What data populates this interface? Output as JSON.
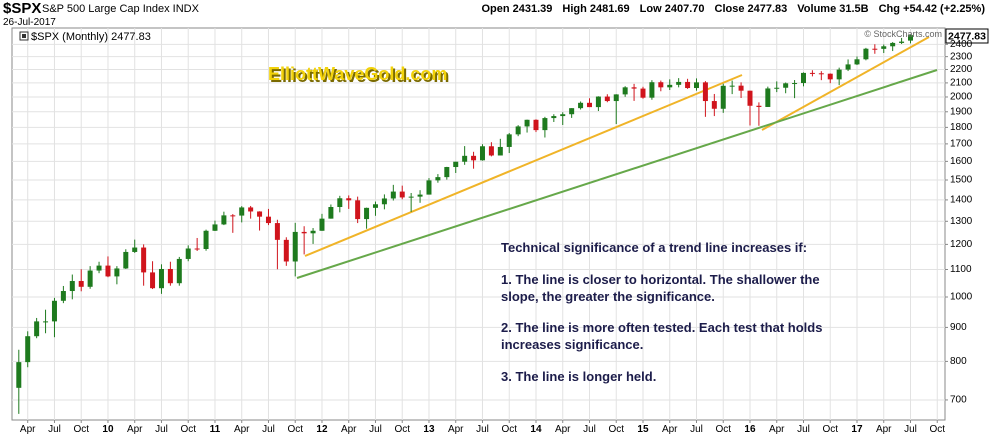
{
  "chart_data": {
    "type": "candlestick",
    "symbol": "$SPX",
    "title": "S&P 500 Large Cap Index INDX",
    "date": "26-Jul-2017",
    "quote": [
      "Open 2431.39",
      "High 2481.69",
      "Low 2407.70",
      "Close 2477.83",
      "Volume 31.5B",
      "Chg +54.42 (+2.25%)"
    ],
    "legend": "$SPX (Monthly) 2477.83",
    "last_label": "2477.83",
    "credit": "© StockCharts.com",
    "watermark": "ElliottWaveGold.com",
    "annotations": [
      "Technical significance of a trend line increases if:",
      "1. The line is closer to horizontal. The shallower the",
      "slope, the greater the significance.",
      "2. The line is more often tested. Each test that holds",
      "increases significance.",
      "3. The line is longer held."
    ],
    "up_color": "#1e7a1e",
    "down_color": "#d0141c",
    "log_scale": true,
    "grid": true,
    "ylim": [
      653,
      2540
    ],
    "yticks": [
      700,
      800,
      900,
      1000,
      1100,
      1200,
      1300,
      1400,
      1500,
      1600,
      1700,
      1800,
      1900,
      2000,
      2100,
      2200,
      2300,
      2400
    ],
    "categories": [
      null,
      "Apr",
      null,
      null,
      "Jul",
      null,
      null,
      "Oct",
      null,
      null,
      "10",
      null,
      null,
      "Apr",
      null,
      null,
      "Jul",
      null,
      null,
      "Oct",
      null,
      null,
      "11",
      null,
      null,
      "Apr",
      null,
      null,
      "Jul",
      null,
      null,
      "Oct",
      null,
      null,
      "12",
      null,
      null,
      "Apr",
      null,
      null,
      "Jul",
      null,
      null,
      "Oct",
      null,
      null,
      "13",
      null,
      null,
      "Apr",
      null,
      null,
      "Jul",
      null,
      null,
      "Oct",
      null,
      null,
      "14",
      null,
      null,
      "Apr",
      null,
      null,
      "Jul",
      null,
      null,
      "Oct",
      null,
      null,
      "15",
      null,
      null,
      "Apr",
      null,
      null,
      "Jul",
      null,
      null,
      "Oct",
      null,
      null,
      "16",
      null,
      null,
      "Apr",
      null,
      null,
      "Jul",
      null,
      null,
      "Oct",
      null,
      null,
      "17",
      null,
      null,
      "Apr",
      null,
      null,
      "Jul",
      null,
      null,
      "Oct"
    ],
    "open": [
      730,
      798,
      873,
      919,
      919,
      987,
      1021,
      1057,
      1036,
      1096,
      1115,
      1074,
      1104,
      1169,
      1187,
      1089,
      1031,
      1102,
      1049,
      1141,
      1183,
      1181,
      1258,
      1286,
      1327,
      1326,
      1364,
      1345,
      1321,
      1292,
      1219,
      1131,
      1253,
      1247,
      1258,
      1312,
      1366,
      1408,
      1398,
      1310,
      1362,
      1379,
      1407,
      1441,
      1412,
      1416,
      1426,
      1498,
      1515,
      1569,
      1598,
      1631,
      1606,
      1686,
      1633,
      1682,
      1757,
      1806,
      1848,
      1783,
      1859,
      1872,
      1884,
      1924,
      1960,
      1931,
      2003,
      1972,
      2018,
      2068,
      2059,
      1995,
      2105,
      2068,
      2086,
      2107,
      2063,
      2104,
      1972,
      1920,
      2079,
      2080,
      2044,
      1940,
      1932,
      2060,
      2065,
      2097,
      2099,
      2174,
      2171,
      2168,
      2126,
      2199,
      2239,
      2279,
      2364,
      2363,
      2384,
      2412,
      2431.39,
      null,
      null,
      null
    ],
    "high": [
      833,
      888,
      930,
      957,
      997,
      1039,
      1081,
      1101,
      1113,
      1130,
      1151,
      1113,
      1180,
      1220,
      1200,
      1132,
      1120,
      1130,
      1149,
      1196,
      1227,
      1263,
      1303,
      1344,
      1333,
      1370,
      1371,
      1346,
      1357,
      1307,
      1230,
      1293,
      1278,
      1270,
      1334,
      1378,
      1420,
      1422,
      1416,
      1363,
      1392,
      1427,
      1475,
      1471,
      1434,
      1448,
      1510,
      1531,
      1570,
      1598,
      1687,
      1654,
      1698,
      1710,
      1730,
      1765,
      1814,
      1849,
      1851,
      1867,
      1884,
      1897,
      1924,
      1969,
      1991,
      2005,
      2019,
      2019,
      2076,
      2093,
      2072,
      2120,
      2117,
      2126,
      2135,
      2130,
      2133,
      2113,
      2021,
      2094,
      2117,
      2104,
      2044,
      1963,
      2073,
      2111,
      2103,
      2121,
      2178,
      2194,
      2187,
      2170,
      2214,
      2278,
      2301,
      2371,
      2401,
      2399,
      2419,
      2454,
      2481.69,
      null,
      null,
      null
    ],
    "low": [
      667,
      784,
      867,
      882,
      870,
      979,
      992,
      1020,
      1029,
      1086,
      1071,
      1045,
      1102,
      1165,
      1040,
      1028,
      1011,
      1040,
      1040,
      1132,
      1173,
      1174,
      1257,
      1283,
      1249,
      1295,
      1312,
      1259,
      1283,
      1101,
      1114,
      1074,
      1159,
      1202,
      1258,
      1312,
      1341,
      1357,
      1292,
      1267,
      1325,
      1355,
      1397,
      1403,
      1343,
      1386,
      1426,
      1486,
      1502,
      1537,
      1581,
      1560,
      1604,
      1628,
      1633,
      1647,
      1746,
      1768,
      1771,
      1738,
      1834,
      1815,
      1860,
      1915,
      1931,
      1905,
      1964,
      1821,
      2001,
      1973,
      1988,
      1981,
      2040,
      2049,
      2068,
      2057,
      2044,
      1867,
      1872,
      1893,
      2020,
      1993,
      1812,
      1810,
      1932,
      2034,
      2026,
      1992,
      2075,
      2148,
      2120,
      2098,
      2084,
      2188,
      2234,
      2271,
      2323,
      2329,
      2345,
      2403,
      2407.7,
      null,
      null,
      null
    ],
    "close": [
      798,
      873,
      919,
      919,
      987,
      1021,
      1057,
      1036,
      1096,
      1115,
      1074,
      1104,
      1169,
      1187,
      1089,
      1031,
      1102,
      1049,
      1141,
      1183,
      1181,
      1258,
      1286,
      1327,
      1326,
      1364,
      1345,
      1321,
      1292,
      1219,
      1131,
      1253,
      1247,
      1258,
      1312,
      1366,
      1408,
      1398,
      1310,
      1362,
      1379,
      1407,
      1441,
      1412,
      1416,
      1426,
      1498,
      1515,
      1569,
      1598,
      1631,
      1606,
      1686,
      1633,
      1682,
      1757,
      1806,
      1848,
      1783,
      1859,
      1872,
      1884,
      1924,
      1960,
      1931,
      2003,
      1972,
      2018,
      2068,
      2059,
      1995,
      2105,
      2068,
      2086,
      2107,
      2063,
      2104,
      1972,
      1920,
      2079,
      2080,
      2044,
      1940,
      1932,
      2060,
      2065,
      2097,
      2099,
      2174,
      2171,
      2168,
      2126,
      2199,
      2239,
      2279,
      2364,
      2363,
      2384,
      2412,
      2423,
      2477.83,
      null,
      null,
      null
    ]
  }
}
